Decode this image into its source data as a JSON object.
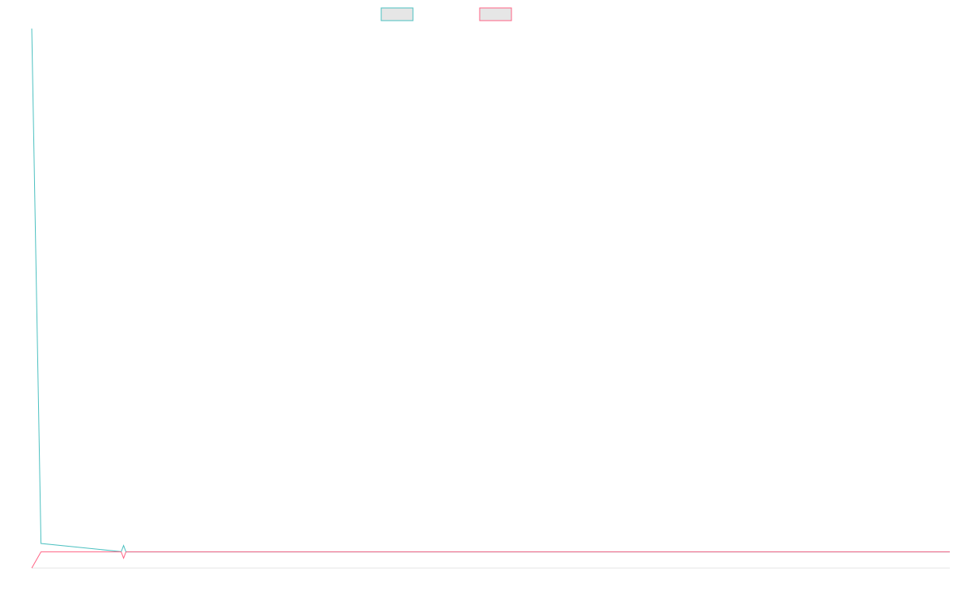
{
  "chart_data": {
    "type": "line",
    "title": "",
    "xlabel": "",
    "ylabel": "",
    "x": [
      0,
      0.1,
      1,
      2,
      3,
      4,
      5,
      6,
      7,
      8,
      9,
      10
    ],
    "series": [
      {
        "color": "#4bc0c0",
        "fill": "#e6e6e6",
        "values": [
          1000,
          16,
          0,
          0,
          0,
          0,
          0,
          0,
          0,
          0,
          0,
          0
        ]
      },
      {
        "color": "#ff6384",
        "fill": "#e6e6e6",
        "values": [
          -31,
          0,
          0,
          0,
          0,
          0,
          0,
          0,
          0,
          0,
          0,
          0
        ]
      }
    ],
    "marker_at_x": 1,
    "xlim": [
      0,
      10
    ],
    "ylim": [
      -31,
      1000
    ],
    "grid": false,
    "legend": {
      "position": "top-center",
      "entries": [
        "",
        ""
      ]
    }
  }
}
